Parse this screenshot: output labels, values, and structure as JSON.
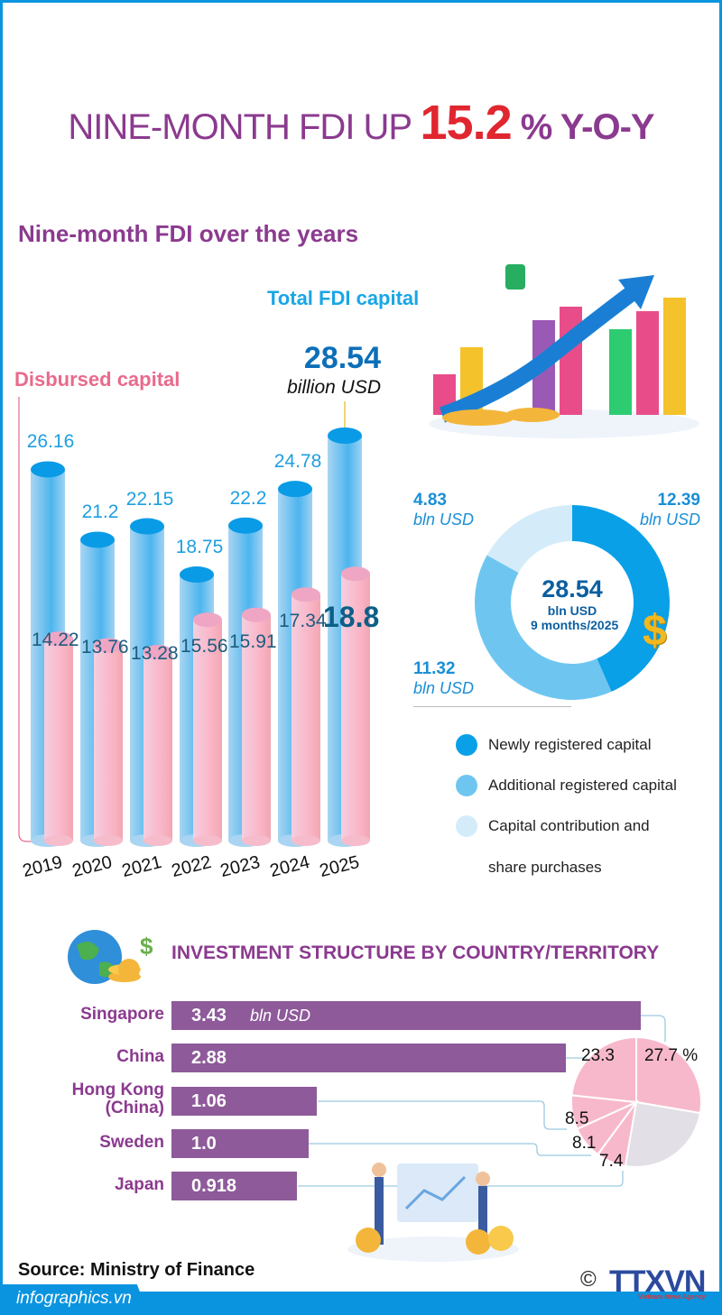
{
  "header": {
    "title_prefix": "NINE-MONTH FDI UP",
    "title_value": "15.2",
    "title_suffix": "% Y-O-Y",
    "section_title": "Nine-month FDI over the years"
  },
  "colors": {
    "purple": "#8b3a8f",
    "red": "#e0262f",
    "total_bar": "#3fb0ea",
    "disbursed_bar": "#f7b6c8",
    "new_capital": "#0aa0e8",
    "additional_capital": "#6ec6f0",
    "contribution": "#d4ecfa",
    "country_bar": "#8e5a9a",
    "pie_pink": "#f8b8cc",
    "pie_grey": "#e2e0e6"
  },
  "chart_data": [
    {
      "type": "bar",
      "title": "Nine-month FDI over the years",
      "categories": [
        "2019",
        "2020",
        "2021",
        "2022",
        "2023",
        "2024",
        "2025"
      ],
      "series": [
        {
          "name": "Total FDI capital",
          "values": [
            26.16,
            21.2,
            22.15,
            18.75,
            22.2,
            24.78,
            28.54
          ],
          "labels": [
            "26.16",
            "21.2",
            "22.15",
            "18.75",
            "22.2",
            "24.78",
            "28.54"
          ]
        },
        {
          "name": "Disbursed capital",
          "values": [
            14.22,
            13.76,
            13.28,
            15.56,
            15.91,
            17.34,
            18.8
          ],
          "labels": [
            "14.22",
            "13.76",
            "13.28",
            "15.56",
            "15.91",
            "17.34",
            "18.8"
          ]
        }
      ],
      "highlight": {
        "value": "28.54",
        "unit": "billion USD"
      },
      "ylim": [
        0,
        30
      ]
    },
    {
      "type": "pie",
      "subtype": "donut",
      "center": {
        "value": "28.54",
        "unit": "bln USD",
        "period": "9 months/2025"
      },
      "slices": [
        {
          "name": "Newly registered capital",
          "value": 12.39,
          "label": "12.39",
          "unit": "bln USD",
          "color": "#0aa0e8"
        },
        {
          "name": "Additional registered capital",
          "value": 11.32,
          "label": "11.32",
          "unit": "bln USD",
          "color": "#6ec6f0"
        },
        {
          "name": "Capital contribution and share purchases",
          "value": 4.83,
          "label": "4.83",
          "unit": "bln USD",
          "color": "#d4ecfa"
        }
      ],
      "legend": [
        "Newly registered capital",
        "Additional registered capital",
        "Capital contribution and",
        "share purchases"
      ]
    },
    {
      "type": "bar",
      "orientation": "horizontal",
      "title": "INVESTMENT STRUCTURE BY COUNTRY/TERRITORY",
      "categories": [
        "Singapore",
        "China",
        "Hong Kong (China)",
        "Sweden",
        "Japan"
      ],
      "category_lines": [
        [
          "Singapore"
        ],
        [
          "China"
        ],
        [
          "Hong Kong",
          "(China)"
        ],
        [
          "Sweden"
        ],
        [
          "Japan"
        ]
      ],
      "values": [
        3.43,
        2.88,
        1.06,
        1.0,
        0.918
      ],
      "labels": [
        "3.43",
        "2.88",
        "1.06",
        "1.0",
        "0.918"
      ],
      "unit": "bln USD"
    },
    {
      "type": "pie",
      "unit": "%",
      "slices": [
        {
          "category": "Singapore",
          "value": 27.7,
          "label": "27.7 %"
        },
        {
          "category": "China",
          "value": 23.3,
          "label": "23.3"
        },
        {
          "category": "Hong Kong (China)",
          "value": 8.5,
          "label": "8.5"
        },
        {
          "category": "Sweden",
          "value": 8.1,
          "label": "8.1"
        },
        {
          "category": "Japan",
          "value": 7.4,
          "label": "7.4"
        }
      ]
    }
  ],
  "footer": {
    "source": "Source: Ministry of Finance",
    "site": "infographics.vn",
    "logo": "TTXVN",
    "logo_sub": "Vietnam News Agency",
    "copyright": "©"
  }
}
